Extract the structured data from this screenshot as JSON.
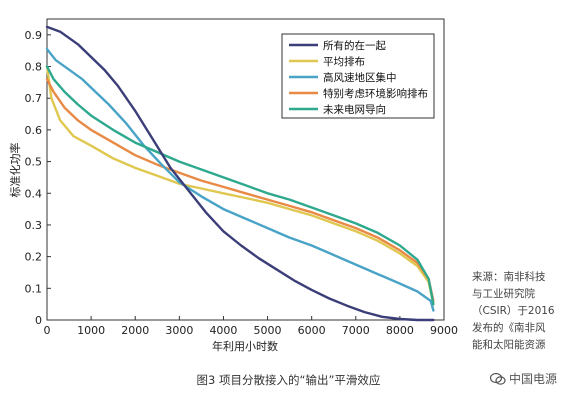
{
  "chart_data": {
    "type": "line",
    "title": "",
    "xlabel": "年利用小时数",
    "ylabel": "标准化功率",
    "xlim": [
      0,
      9000
    ],
    "ylim": [
      0,
      0.95
    ],
    "xticks": [
      0,
      1000,
      2000,
      3000,
      4000,
      5000,
      6000,
      7000,
      8000,
      9000
    ],
    "yticks": [
      0,
      0.1,
      0.2,
      0.3,
      0.4,
      0.5,
      0.6,
      0.7,
      0.8,
      0.9
    ],
    "xtick_labels": [
      "0",
      "1000",
      "2000",
      "3000",
      "4000",
      "5000",
      "6000",
      "7000",
      "8000",
      "9000"
    ],
    "ytick_labels": [
      "0",
      "0.1",
      "0.2",
      "0.3",
      "0.4",
      "0.5",
      "0.6",
      "0.7",
      "0.8",
      "0.9"
    ],
    "grid": false,
    "legend_position": "top-right",
    "series": [
      {
        "name": "所有的在一起",
        "color": "#3b3e78",
        "x": [
          0,
          300,
          700,
          1000,
          1300,
          1600,
          2000,
          2400,
          2800,
          3200,
          3600,
          4000,
          4400,
          4800,
          5200,
          5600,
          6000,
          6400,
          6800,
          7200,
          7600,
          8000,
          8400,
          8760
        ],
        "y": [
          0.925,
          0.91,
          0.87,
          0.83,
          0.79,
          0.74,
          0.66,
          0.57,
          0.48,
          0.41,
          0.34,
          0.28,
          0.235,
          0.195,
          0.16,
          0.125,
          0.095,
          0.068,
          0.045,
          0.025,
          0.01,
          0.003,
          0.0,
          0.0
        ]
      },
      {
        "name": "平均排布",
        "color": "#e0c850",
        "x": [
          0,
          100,
          300,
          600,
          1000,
          1500,
          2000,
          2500,
          3000,
          3500,
          4000,
          4500,
          5000,
          5500,
          6000,
          6500,
          7000,
          7500,
          8000,
          8400,
          8650,
          8760
        ],
        "y": [
          0.8,
          0.7,
          0.63,
          0.58,
          0.55,
          0.51,
          0.48,
          0.455,
          0.43,
          0.415,
          0.4,
          0.385,
          0.37,
          0.35,
          0.33,
          0.305,
          0.28,
          0.25,
          0.21,
          0.17,
          0.12,
          0.05
        ]
      },
      {
        "name": "高风速地区集中",
        "color": "#49a3c6",
        "x": [
          0,
          200,
          500,
          800,
          1100,
          1400,
          1800,
          2200,
          2600,
          3000,
          3500,
          4000,
          4500,
          5000,
          5500,
          6000,
          6500,
          7000,
          7500,
          8000,
          8400,
          8700,
          8760
        ],
        "y": [
          0.855,
          0.82,
          0.79,
          0.76,
          0.72,
          0.68,
          0.62,
          0.55,
          0.49,
          0.435,
          0.39,
          0.35,
          0.32,
          0.29,
          0.26,
          0.235,
          0.205,
          0.175,
          0.145,
          0.115,
          0.09,
          0.06,
          0.03
        ]
      },
      {
        "name": "特别考虑环境影响排布",
        "color": "#e88a45",
        "x": [
          0,
          150,
          400,
          700,
          1000,
          1500,
          2000,
          2500,
          3000,
          3500,
          4000,
          4500,
          5000,
          5500,
          6000,
          6500,
          7000,
          7500,
          8000,
          8400,
          8650,
          8760
        ],
        "y": [
          0.76,
          0.72,
          0.67,
          0.63,
          0.6,
          0.56,
          0.52,
          0.49,
          0.465,
          0.44,
          0.42,
          0.4,
          0.38,
          0.36,
          0.34,
          0.315,
          0.29,
          0.26,
          0.22,
          0.18,
          0.13,
          0.06
        ]
      },
      {
        "name": "未来电网导向",
        "color": "#2ea98e",
        "x": [
          0,
          150,
          400,
          700,
          1000,
          1500,
          2000,
          2500,
          3000,
          3500,
          4000,
          4500,
          5000,
          5500,
          6000,
          6500,
          7000,
          7500,
          8000,
          8400,
          8650,
          8760
        ],
        "y": [
          0.8,
          0.76,
          0.72,
          0.68,
          0.645,
          0.6,
          0.56,
          0.53,
          0.5,
          0.475,
          0.45,
          0.425,
          0.4,
          0.38,
          0.355,
          0.33,
          0.305,
          0.275,
          0.235,
          0.19,
          0.13,
          0.05
        ]
      }
    ]
  },
  "source_note": "来源：南非科技\n与工业研究院\n（CSIR）于2016\n发布的《南非风\n能和太阳能资源",
  "caption": "图3  项目分散接入的“输出”平滑效应",
  "watermark": "中国电源"
}
